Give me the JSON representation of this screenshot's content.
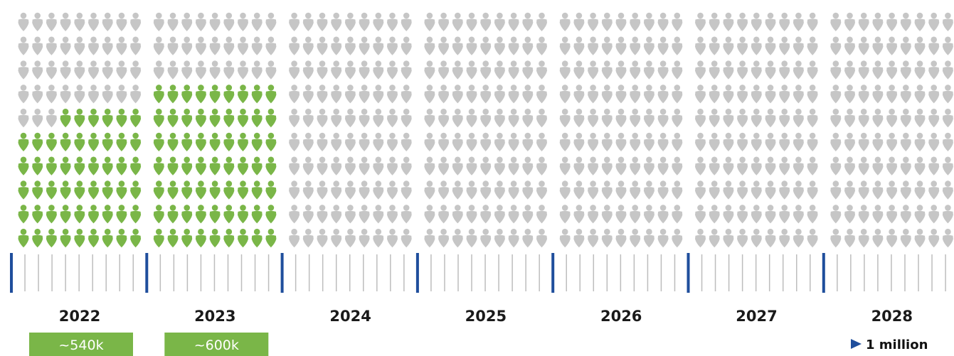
{
  "chart_data": {
    "type": "pictograph",
    "categories": [
      "2022",
      "2023",
      "2024",
      "2025",
      "2026",
      "2027",
      "2028"
    ],
    "icons_per_group": 90,
    "icon_grid": {
      "columns": 9,
      "rows": 10
    },
    "filled_icons": [
      51,
      63,
      0,
      0,
      0,
      0,
      0
    ],
    "value_labels": [
      "~540k",
      "~600k",
      "",
      "",
      "",
      "",
      ""
    ],
    "target_label": "1 million",
    "colors": {
      "filled": "#7ab648",
      "empty": "#c6c6c6",
      "label_box": "#7ab648",
      "year_tick": "#1f4e9c",
      "minor_tick": "#bdbdbd",
      "arrow_start": "#e3ecf6",
      "arrow_end": "#1f4e9c"
    }
  }
}
